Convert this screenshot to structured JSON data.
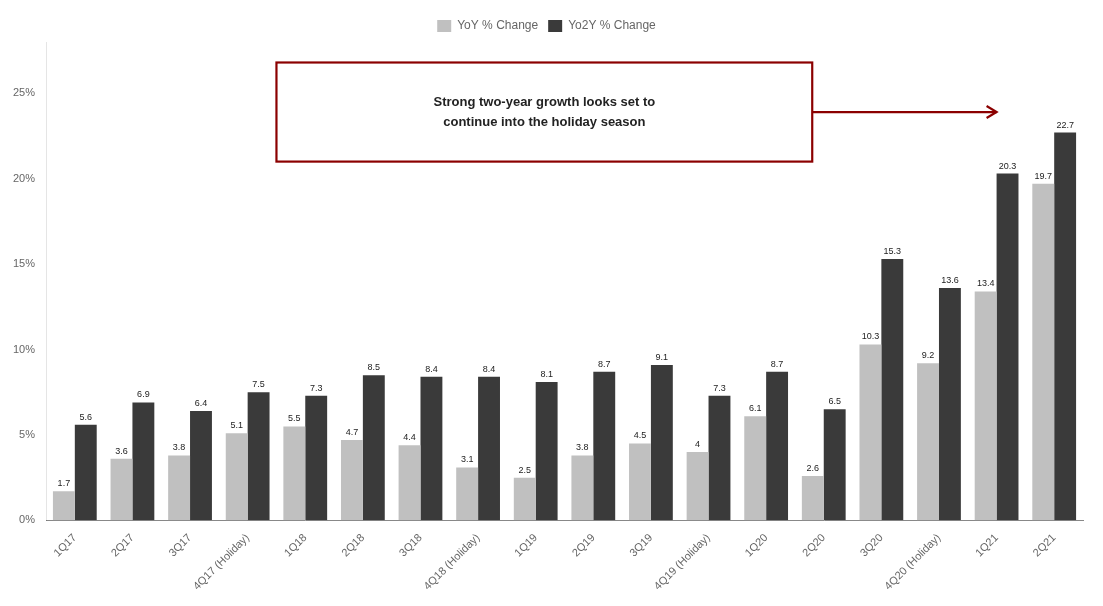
{
  "chart_data": {
    "type": "bar",
    "categories": [
      "1Q17",
      "2Q17",
      "3Q17",
      "4Q17 (Holiday)",
      "1Q18",
      "2Q18",
      "3Q18",
      "4Q18 (Holiday)",
      "1Q19",
      "2Q19",
      "3Q19",
      "4Q19 (Holiday)",
      "1Q20",
      "2Q20",
      "3Q20",
      "4Q20 (Holiday)",
      "1Q21",
      "2Q21"
    ],
    "series": [
      {
        "name": "YoY % Change",
        "color": "#c0c0c0",
        "values": [
          1.7,
          3.6,
          3.8,
          5.1,
          5.5,
          4.7,
          4.4,
          3.1,
          2.5,
          3.8,
          4.5,
          4.0,
          6.1,
          2.6,
          10.3,
          9.2,
          13.4,
          19.7
        ]
      },
      {
        "name": "Yo2Y % Change",
        "color": "#3a3a3a",
        "values": [
          5.6,
          6.9,
          6.4,
          7.5,
          7.3,
          8.5,
          8.4,
          8.4,
          8.1,
          8.7,
          9.1,
          7.3,
          8.7,
          6.5,
          15.3,
          13.6,
          20.3,
          22.7
        ]
      }
    ],
    "ylim": [
      0,
      28
    ],
    "yticks": [
      {
        "value": 0,
        "label": "0%"
      },
      {
        "value": 5,
        "label": "5%"
      },
      {
        "value": 10,
        "label": "10%"
      },
      {
        "value": 15,
        "label": "15%"
      },
      {
        "value": 20,
        "label": "20%"
      },
      {
        "value": 25,
        "label": "25%"
      }
    ],
    "grid": false,
    "legend": "top",
    "data_labels": true,
    "annotation": "Strong two-year growth looks set to\ncontinue into the holiday season"
  }
}
